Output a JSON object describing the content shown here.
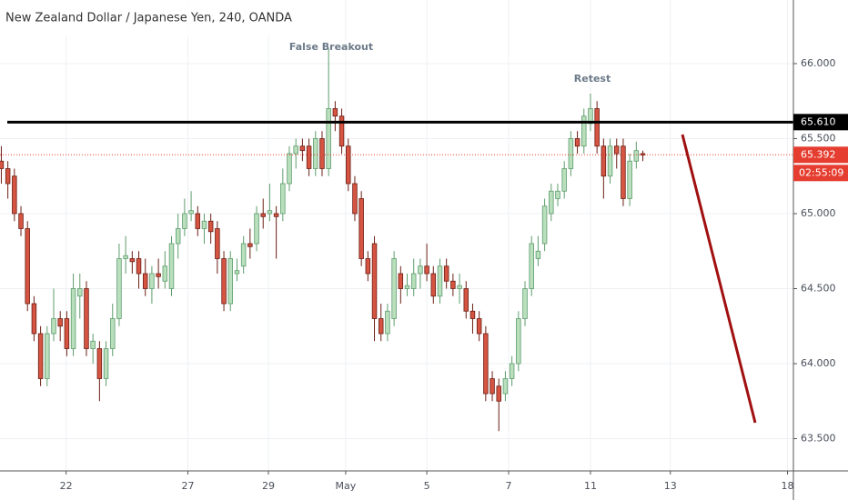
{
  "chart_data": {
    "type": "candlestick",
    "title": "New Zealand Dollar / Japanese Yen, 240, OANDA",
    "annotations": [
      "False Breakout",
      "Retest"
    ],
    "open": [
      65.35,
      65.3,
      65.25,
      65.0,
      64.9,
      64.4,
      64.2,
      63.9,
      64.2,
      64.3,
      64.3,
      64.1,
      64.45,
      64.5,
      64.1,
      64.1,
      63.9,
      64.1,
      64.3,
      64.7,
      64.7,
      64.7,
      64.6,
      64.5,
      64.6,
      64.55,
      64.5,
      64.8,
      64.9,
      65.0,
      65.0,
      64.9,
      64.95,
      64.9,
      64.7,
      64.4,
      64.6,
      64.65,
      64.8,
      64.8,
      65.0,
      65.0,
      65.0,
      65.0,
      65.2,
      65.4,
      65.45,
      65.45,
      65.3,
      65.5,
      65.3,
      65.7,
      65.65,
      65.45,
      65.2,
      65.1,
      64.7,
      64.8,
      64.3,
      64.2,
      64.3,
      64.6,
      64.5,
      64.5,
      64.6,
      64.65,
      64.6,
      64.45,
      64.65,
      64.55,
      64.5,
      64.5,
      64.35,
      64.3,
      64.2,
      63.9,
      63.85,
      63.8,
      63.9,
      64.0,
      64.3,
      64.5,
      64.7,
      64.8,
      65.0,
      65.1,
      65.15,
      65.3,
      65.5,
      65.45,
      65.6,
      65.7,
      65.45,
      65.25,
      65.45,
      65.45,
      65.1,
      65.35,
      65.4
    ],
    "high": [
      65.45,
      65.35,
      65.3,
      65.05,
      64.95,
      64.45,
      64.25,
      64.25,
      64.5,
      64.35,
      64.35,
      64.6,
      64.6,
      64.55,
      64.2,
      64.15,
      64.15,
      64.4,
      64.8,
      64.85,
      64.75,
      64.75,
      64.7,
      64.65,
      64.7,
      64.75,
      64.85,
      65.0,
      65.1,
      65.15,
      65.05,
      65.0,
      65.0,
      64.95,
      64.75,
      64.75,
      64.7,
      64.85,
      64.9,
      65.05,
      65.1,
      65.2,
      65.05,
      65.3,
      65.45,
      65.5,
      65.5,
      65.5,
      65.55,
      65.55,
      66.1,
      65.75,
      65.7,
      65.5,
      65.25,
      65.15,
      64.75,
      64.85,
      64.4,
      64.4,
      64.75,
      64.65,
      64.6,
      64.7,
      64.7,
      64.8,
      64.65,
      64.7,
      64.7,
      64.6,
      64.6,
      64.55,
      64.4,
      64.35,
      64.25,
      63.95,
      63.9,
      63.95,
      64.05,
      64.35,
      64.55,
      64.85,
      64.85,
      65.1,
      65.2,
      65.2,
      65.35,
      65.55,
      65.55,
      65.7,
      65.8,
      65.75,
      65.5,
      65.5,
      65.5,
      65.5,
      65.4,
      65.48,
      65.42
    ],
    "low": [
      65.2,
      65.1,
      64.95,
      64.85,
      64.35,
      64.15,
      63.85,
      63.85,
      64.15,
      64.15,
      64.05,
      64.05,
      64.3,
      64.05,
      64.0,
      63.75,
      63.85,
      64.05,
      64.25,
      64.6,
      64.6,
      64.5,
      64.45,
      64.4,
      64.5,
      64.5,
      64.45,
      64.7,
      64.85,
      64.95,
      64.85,
      64.8,
      64.8,
      64.6,
      64.35,
      64.35,
      64.55,
      64.6,
      64.7,
      64.75,
      64.9,
      64.95,
      64.7,
      64.95,
      65.15,
      65.3,
      65.35,
      65.25,
      65.25,
      65.25,
      65.25,
      65.55,
      65.4,
      65.15,
      64.95,
      64.65,
      64.55,
      64.15,
      64.15,
      64.15,
      64.25,
      64.4,
      64.45,
      64.45,
      64.5,
      64.55,
      64.4,
      64.4,
      64.5,
      64.45,
      64.4,
      64.3,
      64.2,
      64.15,
      63.75,
      63.75,
      63.55,
      63.75,
      63.85,
      63.95,
      64.25,
      64.45,
      64.65,
      64.75,
      64.95,
      65.05,
      65.1,
      65.25,
      65.4,
      65.4,
      65.55,
      65.4,
      65.1,
      65.2,
      65.3,
      65.05,
      65.05,
      65.3,
      65.35
    ],
    "close": [
      65.3,
      65.2,
      65.0,
      64.9,
      64.4,
      64.2,
      63.9,
      64.2,
      64.3,
      64.25,
      64.1,
      64.5,
      64.5,
      64.1,
      64.15,
      63.9,
      64.1,
      64.3,
      64.7,
      64.72,
      64.68,
      64.6,
      64.5,
      64.6,
      64.58,
      64.65,
      64.8,
      64.9,
      65.0,
      65.02,
      64.9,
      64.95,
      64.88,
      64.7,
      64.4,
      64.7,
      64.62,
      64.8,
      64.78,
      65.0,
      64.98,
      65.02,
      64.98,
      65.2,
      65.4,
      65.45,
      65.42,
      65.3,
      65.5,
      65.3,
      65.7,
      65.65,
      65.45,
      65.2,
      65.0,
      64.7,
      64.6,
      64.3,
      64.2,
      64.35,
      64.7,
      64.5,
      64.52,
      64.6,
      64.65,
      64.6,
      64.45,
      64.65,
      64.55,
      64.5,
      64.52,
      64.35,
      64.3,
      64.2,
      63.8,
      63.8,
      63.75,
      63.9,
      64.0,
      64.3,
      64.5,
      64.8,
      64.75,
      65.05,
      65.15,
      65.15,
      65.3,
      65.5,
      65.45,
      65.65,
      65.7,
      65.45,
      65.25,
      65.45,
      65.4,
      65.1,
      65.35,
      65.42,
      65.39
    ],
    "up_color": "#b9dfbd",
    "up_border": "#5d9c6c",
    "down_color": "#d55442",
    "down_border": "#6b1f15",
    "xlim": [
      -0.2,
      121
    ],
    "xticks": [
      {
        "value": 9.9,
        "label": "22"
      },
      {
        "value": 28.5,
        "label": "27"
      },
      {
        "value": 40.8,
        "label": "29"
      },
      {
        "value": 52.6,
        "label": "May"
      },
      {
        "value": 65,
        "label": "5"
      },
      {
        "value": 77.5,
        "label": "7"
      },
      {
        "value": 90,
        "label": "11"
      },
      {
        "value": 102.2,
        "label": "13"
      },
      {
        "value": 120.1,
        "label": "18"
      }
    ],
    "ylim": [
      63.285,
      66.424
    ],
    "yticks": [
      {
        "value": 63.5,
        "label": "63.500"
      },
      {
        "value": 64,
        "label": "64.000"
      },
      {
        "value": 64.5,
        "label": "64.500"
      },
      {
        "value": 65,
        "label": "65.000"
      },
      {
        "value": 65.5,
        "label": "65.500"
      },
      {
        "value": 66,
        "label": "66.000"
      }
    ],
    "grid": true,
    "level": {
      "value": 65.61,
      "label": "65.610",
      "color": "#000000"
    },
    "last_price": {
      "value": 65.392,
      "label": "65.392",
      "countdown": "02:55:09",
      "color": "#e53e30"
    }
  }
}
